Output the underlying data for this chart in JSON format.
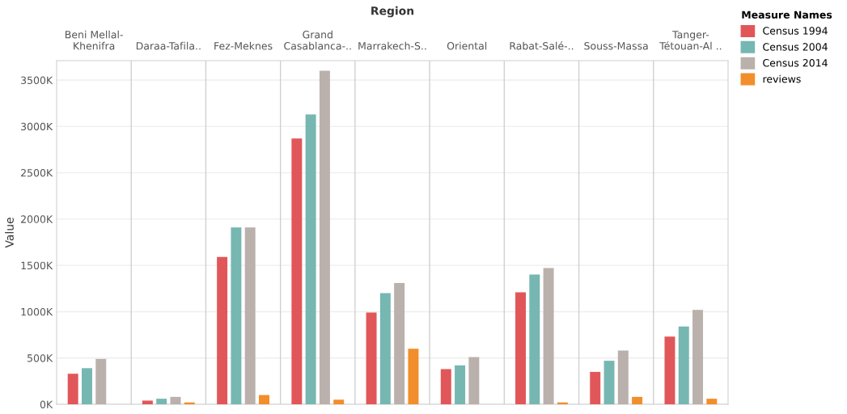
{
  "chart_data": {
    "type": "bar",
    "xlabel": "Region",
    "ylabel": "Value",
    "legend_title": "Measure Names",
    "legend": "top right",
    "grid": "y",
    "categories": [
      "Beni Mellal-\nKhenifra",
      "Daraa-Tafila..",
      "Fez-Meknes",
      "Grand\nCasablanca-..",
      "Marrakech-S..",
      "Oriental",
      "Rabat-Salé-..",
      "Souss-Massa",
      "Tanger-\nTétouan-Al .."
    ],
    "series": [
      {
        "name": "Census 1994",
        "color": "#e15759",
        "values": [
          330000,
          40000,
          1590000,
          2870000,
          990000,
          380000,
          1210000,
          350000,
          730000
        ]
      },
      {
        "name": "Census 2004",
        "color": "#76b7b2",
        "values": [
          390000,
          60000,
          1910000,
          3130000,
          1200000,
          420000,
          1400000,
          470000,
          840000
        ]
      },
      {
        "name": "Census 2014",
        "color": "#bab0ac",
        "values": [
          490000,
          80000,
          1910000,
          3600000,
          1310000,
          510000,
          1470000,
          580000,
          1020000
        ]
      },
      {
        "name": "reviews",
        "color": "#f28e2b",
        "values": [
          null,
          20000,
          100000,
          50000,
          600000,
          null,
          20000,
          80000,
          60000
        ]
      }
    ],
    "ylim": [
      0,
      3710000
    ],
    "yticks": [
      {
        "value": 0,
        "label": "0K"
      },
      {
        "value": 500000,
        "label": "500K"
      },
      {
        "value": 1000000,
        "label": "1000K"
      },
      {
        "value": 1500000,
        "label": "1500K"
      },
      {
        "value": 2000000,
        "label": "2000K"
      },
      {
        "value": 2500000,
        "label": "2500K"
      },
      {
        "value": 3000000,
        "label": "3000K"
      },
      {
        "value": 3500000,
        "label": "3500K"
      }
    ]
  }
}
